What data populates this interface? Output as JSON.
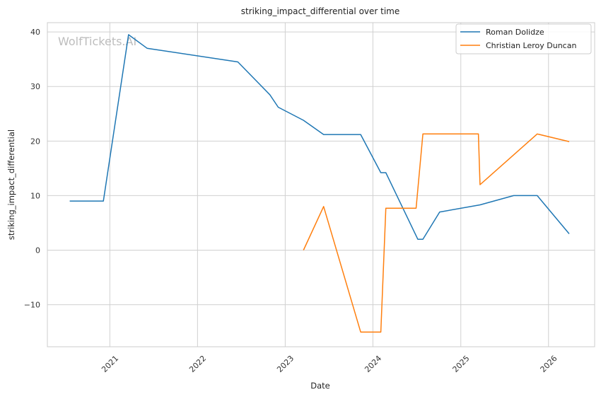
{
  "chart_data": {
    "type": "line",
    "title": "striking_impact_differential over time",
    "xlabel": "Date",
    "ylabel": "striking_impact_differential",
    "watermark": "WolfTickets.AI",
    "x_ticks": [
      "2021",
      "2022",
      "2023",
      "2024",
      "2025",
      "2026"
    ],
    "y_ticks": [
      -10,
      0,
      10,
      20,
      30,
      40
    ],
    "xlim": [
      "2020-04-16",
      "2026-07-12"
    ],
    "ylim": [
      -17.7,
      41.7
    ],
    "grid": true,
    "legend_position": "top-right",
    "series": [
      {
        "name": "Roman Dolidze",
        "color": "#1f77b4",
        "points": [
          {
            "date": "2020-07-18",
            "value": 9
          },
          {
            "date": "2020-12-05",
            "value": 9
          },
          {
            "date": "2021-03-20",
            "value": 39.5
          },
          {
            "date": "2021-06-05",
            "value": 37
          },
          {
            "date": "2022-06-18",
            "value": 34.5
          },
          {
            "date": "2022-10-29",
            "value": 28.5
          },
          {
            "date": "2022-12-03",
            "value": 26.2
          },
          {
            "date": "2023-03-18",
            "value": 23.8
          },
          {
            "date": "2023-06-10",
            "value": 21.2
          },
          {
            "date": "2023-11-11",
            "value": 21.2
          },
          {
            "date": "2024-02-03",
            "value": 14.2
          },
          {
            "date": "2024-02-24",
            "value": 14.2
          },
          {
            "date": "2024-07-06",
            "value": 2
          },
          {
            "date": "2024-07-27",
            "value": 2
          },
          {
            "date": "2024-10-05",
            "value": 7
          },
          {
            "date": "2025-03-22",
            "value": 8.3
          },
          {
            "date": "2025-08-09",
            "value": 10
          },
          {
            "date": "2025-11-15",
            "value": 10
          },
          {
            "date": "2026-03-28",
            "value": 3
          }
        ]
      },
      {
        "name": "Christian Leroy Duncan",
        "color": "#ff7f0e",
        "points": [
          {
            "date": "2023-03-18",
            "value": 0
          },
          {
            "date": "2023-06-10",
            "value": 8
          },
          {
            "date": "2023-11-11",
            "value": -15
          },
          {
            "date": "2024-02-03",
            "value": -15
          },
          {
            "date": "2024-02-24",
            "value": 7.7
          },
          {
            "date": "2024-06-29",
            "value": 7.7
          },
          {
            "date": "2024-07-27",
            "value": 21.3
          },
          {
            "date": "2025-03-15",
            "value": 21.3
          },
          {
            "date": "2025-03-22",
            "value": 12
          },
          {
            "date": "2025-11-15",
            "value": 21.3
          },
          {
            "date": "2026-03-28",
            "value": 19.9
          }
        ]
      }
    ]
  }
}
